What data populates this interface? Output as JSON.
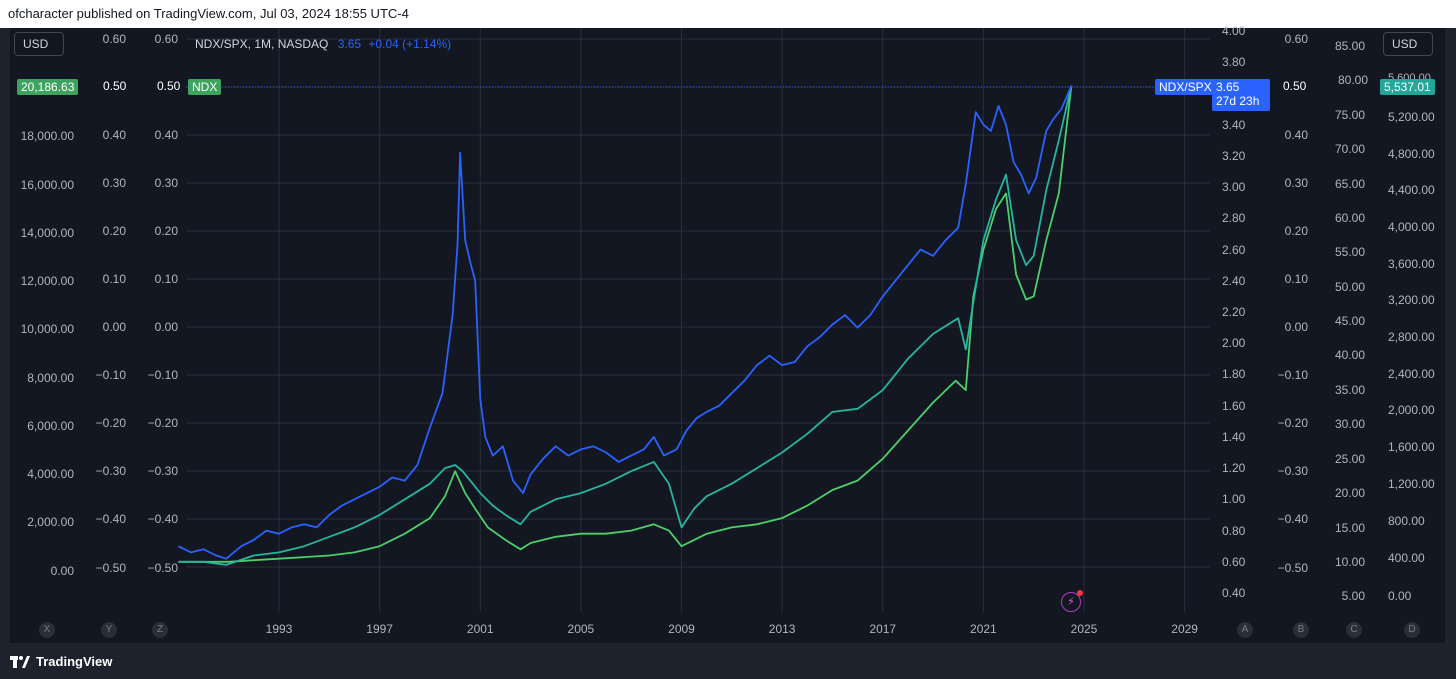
{
  "header": {
    "text": "ofcharacter published on TradingView.com, Jul 03, 2024 18:55 UTC-4"
  },
  "legend": {
    "symbol": "NDX/SPX, 1M, NASDAQ",
    "value": "3.65",
    "change": "+0.04 (+1.14%)"
  },
  "currency": {
    "left": "USD",
    "right": "USD"
  },
  "badges": {
    "ndx_price": "20,186.63",
    "ndx_label": "NDX",
    "ratio_label": "NDX/SPX",
    "ratio_value": "3.65",
    "ratio_countdown": "27d 23h",
    "spx_price": "5,537.01",
    "pct_left_a": "0.50",
    "pct_left_b": "0.50",
    "pct_right": "0.50",
    "behind_right": "5,600.00",
    "ratio_above": "80.00"
  },
  "colors": {
    "background": "#131722",
    "ratio_line": "#2962ff",
    "teal_line": "#26b5a0",
    "green_line": "#4ccf6a",
    "grid": "#2a2e39"
  },
  "chart_data": {
    "type": "line",
    "x_ticks": [
      "1993",
      "1997",
      "2001",
      "2005",
      "2009",
      "2013",
      "2017",
      "2021",
      "2025",
      "2029"
    ],
    "axes": {
      "ndx_price": [
        "20,186.63",
        "18,000.00",
        "16,000.00",
        "14,000.00",
        "12,000.00",
        "10,000.00",
        "8,000.00",
        "6,000.00",
        "4,000.00",
        "2,000.00",
        "0.00"
      ],
      "pct_a": [
        "0.60",
        "0.50",
        "0.40",
        "0.30",
        "0.20",
        "0.10",
        "0.00",
        "−0.10",
        "−0.20",
        "−0.30",
        "−0.40",
        "−0.50"
      ],
      "pct_b": [
        "0.60",
        "0.50",
        "0.40",
        "0.30",
        "0.20",
        "0.10",
        "0.00",
        "−0.10",
        "−0.20",
        "−0.30",
        "−0.40",
        "−0.50"
      ],
      "ratio": [
        "4.00",
        "3.80",
        "3.40",
        "3.20",
        "3.00",
        "2.80",
        "2.60",
        "2.40",
        "2.20",
        "2.00",
        "1.80",
        "1.60",
        "1.40",
        "1.20",
        "1.00",
        "0.80",
        "0.60",
        "0.40"
      ],
      "pct_c": [
        "0.60",
        "0.50",
        "0.40",
        "0.30",
        "0.20",
        "0.10",
        "0.00",
        "−0.10",
        "−0.20",
        "−0.30",
        "−0.40",
        "−0.50"
      ],
      "ratio_ref": [
        "85.00",
        "80.00",
        "75.00",
        "70.00",
        "65.00",
        "60.00",
        "55.00",
        "50.00",
        "45.00",
        "40.00",
        "35.00",
        "30.00",
        "25.00",
        "20.00",
        "15.00",
        "10.00",
        "5.00"
      ],
      "spx_price": [
        "5,600.00",
        "5,200.00",
        "4,800.00",
        "4,400.00",
        "4,000.00",
        "3,600.00",
        "3,200.00",
        "2,800.00",
        "2,400.00",
        "2,000.00",
        "1,600.00",
        "1,200.00",
        "800.00",
        "400.00",
        "0.00"
      ]
    },
    "series": [
      {
        "name": "NDX/SPX",
        "color": "#2962ff",
        "points": [
          [
            1989.0,
            0.7
          ],
          [
            1989.5,
            0.66
          ],
          [
            1990.0,
            0.68
          ],
          [
            1990.5,
            0.64
          ],
          [
            1990.9,
            0.62
          ],
          [
            1991.5,
            0.7
          ],
          [
            1992.0,
            0.74
          ],
          [
            1992.5,
            0.8
          ],
          [
            1993.0,
            0.78
          ],
          [
            1993.5,
            0.82
          ],
          [
            1994.0,
            0.84
          ],
          [
            1994.5,
            0.82
          ],
          [
            1995.0,
            0.9
          ],
          [
            1995.5,
            0.96
          ],
          [
            1996.0,
            1.0
          ],
          [
            1996.5,
            1.04
          ],
          [
            1997.0,
            1.08
          ],
          [
            1997.5,
            1.14
          ],
          [
            1998.0,
            1.12
          ],
          [
            1998.5,
            1.22
          ],
          [
            1999.0,
            1.46
          ],
          [
            1999.5,
            1.68
          ],
          [
            1999.9,
            2.18
          ],
          [
            2000.1,
            2.64
          ],
          [
            2000.2,
            3.22
          ],
          [
            2000.4,
            2.66
          ],
          [
            2000.6,
            2.52
          ],
          [
            2000.8,
            2.4
          ],
          [
            2001.0,
            1.64
          ],
          [
            2001.2,
            1.4
          ],
          [
            2001.5,
            1.28
          ],
          [
            2001.9,
            1.34
          ],
          [
            2002.3,
            1.12
          ],
          [
            2002.7,
            1.04
          ],
          [
            2003.0,
            1.16
          ],
          [
            2003.5,
            1.26
          ],
          [
            2004.0,
            1.34
          ],
          [
            2004.5,
            1.28
          ],
          [
            2005.0,
            1.32
          ],
          [
            2005.5,
            1.34
          ],
          [
            2006.0,
            1.3
          ],
          [
            2006.5,
            1.24
          ],
          [
            2007.0,
            1.28
          ],
          [
            2007.5,
            1.32
          ],
          [
            2007.9,
            1.4
          ],
          [
            2008.3,
            1.28
          ],
          [
            2008.8,
            1.32
          ],
          [
            2009.2,
            1.44
          ],
          [
            2009.6,
            1.52
          ],
          [
            2010.0,
            1.56
          ],
          [
            2010.5,
            1.6
          ],
          [
            2011.0,
            1.68
          ],
          [
            2011.5,
            1.76
          ],
          [
            2012.0,
            1.86
          ],
          [
            2012.5,
            1.92
          ],
          [
            2013.0,
            1.86
          ],
          [
            2013.5,
            1.88
          ],
          [
            2014.0,
            1.98
          ],
          [
            2014.5,
            2.04
          ],
          [
            2015.0,
            2.12
          ],
          [
            2015.5,
            2.18
          ],
          [
            2016.0,
            2.1
          ],
          [
            2016.5,
            2.18
          ],
          [
            2017.0,
            2.3
          ],
          [
            2017.5,
            2.4
          ],
          [
            2018.0,
            2.5
          ],
          [
            2018.5,
            2.6
          ],
          [
            2019.0,
            2.56
          ],
          [
            2019.5,
            2.66
          ],
          [
            2020.0,
            2.74
          ],
          [
            2020.3,
            3.02
          ],
          [
            2020.7,
            3.48
          ],
          [
            2021.0,
            3.4
          ],
          [
            2021.3,
            3.36
          ],
          [
            2021.6,
            3.52
          ],
          [
            2021.9,
            3.4
          ],
          [
            2022.2,
            3.16
          ],
          [
            2022.5,
            3.08
          ],
          [
            2022.8,
            2.96
          ],
          [
            2023.1,
            3.06
          ],
          [
            2023.5,
            3.36
          ],
          [
            2023.8,
            3.44
          ],
          [
            2024.1,
            3.5
          ],
          [
            2024.5,
            3.65
          ]
        ]
      },
      {
        "name": "NDX",
        "color": "#26b5a0",
        "points": [
          [
            1989.0,
            0.6
          ],
          [
            1990.0,
            0.6
          ],
          [
            1990.9,
            0.58
          ],
          [
            1992.0,
            0.64
          ],
          [
            1993.0,
            0.66
          ],
          [
            1994.0,
            0.7
          ],
          [
            1995.0,
            0.76
          ],
          [
            1996.0,
            0.82
          ],
          [
            1997.0,
            0.9
          ],
          [
            1998.0,
            1.0
          ],
          [
            1999.0,
            1.1
          ],
          [
            1999.6,
            1.2
          ],
          [
            2000.0,
            1.22
          ],
          [
            2000.3,
            1.18
          ],
          [
            2000.6,
            1.12
          ],
          [
            2001.0,
            1.04
          ],
          [
            2001.5,
            0.96
          ],
          [
            2002.0,
            0.9
          ],
          [
            2002.6,
            0.84
          ],
          [
            2003.0,
            0.92
          ],
          [
            2004.0,
            1.0
          ],
          [
            2005.0,
            1.04
          ],
          [
            2006.0,
            1.1
          ],
          [
            2007.0,
            1.18
          ],
          [
            2007.9,
            1.24
          ],
          [
            2008.5,
            1.1
          ],
          [
            2009.0,
            0.82
          ],
          [
            2009.5,
            0.94
          ],
          [
            2010.0,
            1.02
          ],
          [
            2011.0,
            1.1
          ],
          [
            2012.0,
            1.2
          ],
          [
            2013.0,
            1.3
          ],
          [
            2014.0,
            1.42
          ],
          [
            2015.0,
            1.56
          ],
          [
            2016.0,
            1.58
          ],
          [
            2017.0,
            1.7
          ],
          [
            2018.0,
            1.9
          ],
          [
            2019.0,
            2.06
          ],
          [
            2020.0,
            2.16
          ],
          [
            2020.3,
            1.96
          ],
          [
            2020.7,
            2.36
          ],
          [
            2021.0,
            2.66
          ],
          [
            2021.5,
            2.92
          ],
          [
            2021.9,
            3.08
          ],
          [
            2022.3,
            2.66
          ],
          [
            2022.7,
            2.5
          ],
          [
            2023.0,
            2.56
          ],
          [
            2023.5,
            2.98
          ],
          [
            2024.0,
            3.3
          ],
          [
            2024.5,
            3.65
          ]
        ]
      },
      {
        "name": "SPX",
        "color": "#4ccf6a",
        "points": [
          [
            1989.0,
            0.6
          ],
          [
            1990.0,
            0.6
          ],
          [
            1991.0,
            0.6
          ],
          [
            1992.0,
            0.61
          ],
          [
            1993.0,
            0.62
          ],
          [
            1994.0,
            0.63
          ],
          [
            1995.0,
            0.64
          ],
          [
            1996.0,
            0.66
          ],
          [
            1997.0,
            0.7
          ],
          [
            1998.0,
            0.78
          ],
          [
            1999.0,
            0.88
          ],
          [
            1999.6,
            1.02
          ],
          [
            2000.0,
            1.18
          ],
          [
            2000.4,
            1.04
          ],
          [
            2000.8,
            0.94
          ],
          [
            2001.3,
            0.82
          ],
          [
            2002.0,
            0.74
          ],
          [
            2002.6,
            0.68
          ],
          [
            2003.0,
            0.72
          ],
          [
            2004.0,
            0.76
          ],
          [
            2005.0,
            0.78
          ],
          [
            2006.0,
            0.78
          ],
          [
            2007.0,
            0.8
          ],
          [
            2007.9,
            0.84
          ],
          [
            2008.5,
            0.8
          ],
          [
            2009.0,
            0.7
          ],
          [
            2009.5,
            0.74
          ],
          [
            2010.0,
            0.78
          ],
          [
            2011.0,
            0.82
          ],
          [
            2012.0,
            0.84
          ],
          [
            2013.0,
            0.88
          ],
          [
            2014.0,
            0.96
          ],
          [
            2015.0,
            1.06
          ],
          [
            2016.0,
            1.12
          ],
          [
            2017.0,
            1.26
          ],
          [
            2018.0,
            1.44
          ],
          [
            2019.0,
            1.62
          ],
          [
            2019.9,
            1.76
          ],
          [
            2020.3,
            1.7
          ],
          [
            2020.6,
            2.3
          ],
          [
            2021.0,
            2.6
          ],
          [
            2021.5,
            2.86
          ],
          [
            2021.9,
            2.96
          ],
          [
            2022.3,
            2.44
          ],
          [
            2022.7,
            2.28
          ],
          [
            2023.0,
            2.3
          ],
          [
            2023.5,
            2.66
          ],
          [
            2024.0,
            2.96
          ],
          [
            2024.5,
            3.65
          ]
        ]
      }
    ],
    "ratio_ylim": [
      0.4,
      4.0
    ],
    "x_range": [
      1989.0,
      2030.0
    ],
    "grid": true
  }
}
